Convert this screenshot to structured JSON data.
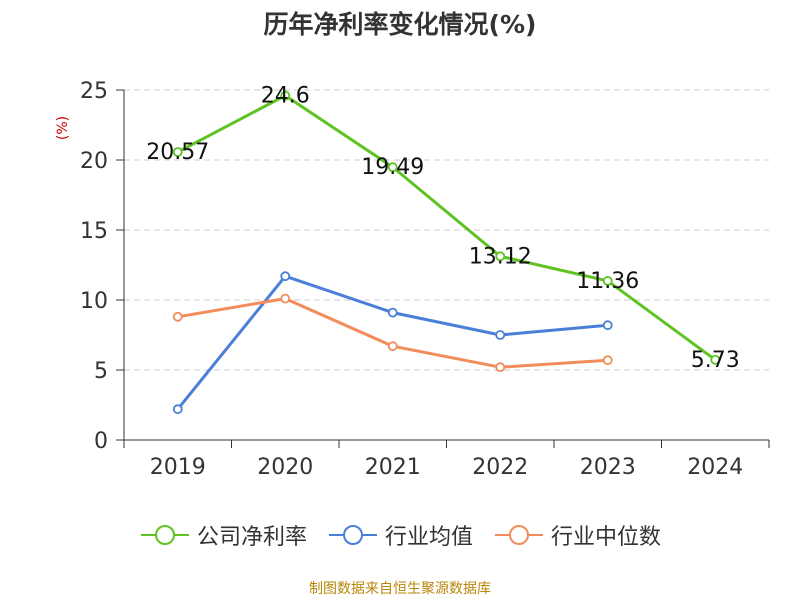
{
  "title": "历年净利率变化情况(%)",
  "source": "制图数据来自恒生聚源数据库",
  "colors": {
    "axis": "#333333",
    "grid": "#cccccc",
    "unit": "#cc0000",
    "label": "#111111"
  },
  "chart_data": {
    "type": "line",
    "title": "历年净利率变化情况(%)",
    "ylabel": "(%)",
    "categories": [
      "2019",
      "2020",
      "2021",
      "2022",
      "2023",
      "2024"
    ],
    "ylim": [
      0,
      25
    ],
    "yticks": [
      "0",
      "5",
      "10",
      "15",
      "20",
      "25"
    ],
    "grid": true,
    "legend_position": "bottom",
    "series": [
      {
        "name": "公司净利率",
        "color": "#5ec322",
        "values": [
          20.57,
          24.6,
          19.49,
          13.12,
          11.36,
          5.73
        ],
        "labels": [
          "20.57",
          "24.6",
          "19.49",
          "13.12",
          "11.36",
          "5.73"
        ]
      },
      {
        "name": "行业均值",
        "color": "#4a7fd9",
        "values": [
          2.2,
          11.7,
          9.1,
          7.5,
          8.2,
          null
        ],
        "labels": null
      },
      {
        "name": "行业中位数",
        "color": "#f28c5a",
        "values": [
          8.8,
          10.1,
          6.7,
          5.2,
          5.7,
          null
        ],
        "labels": null
      }
    ]
  }
}
